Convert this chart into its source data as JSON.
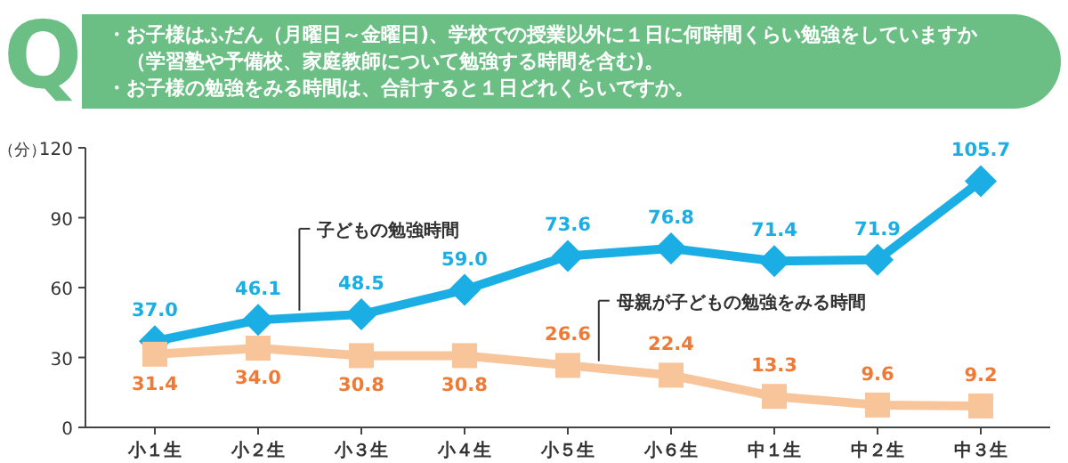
{
  "chart_data": {
    "type": "line",
    "title": "・お子様はふだん（月曜日～金曜日)、学校での授業以外に１日に何時間くらい勉強をしていますか（学習塾や予備校、家庭教師について勉強する時間を含む)。",
    "subtitle": "・お子様の勉強をみる時間は、合計すると１日どれくらいですか。",
    "annotations": [
      "Q"
    ],
    "ylabel": "（分）",
    "categories": [
      "小１生",
      "小２生",
      "小３生",
      "小４生",
      "小５生",
      "小６生",
      "中１生",
      "中２生",
      "中３生"
    ],
    "series": [
      {
        "name": "子どもの勉強時間",
        "color": "#1aaee5",
        "marker": "diamond",
        "values": [
          37.0,
          46.1,
          48.5,
          59.0,
          73.6,
          76.8,
          71.4,
          71.9,
          105.7
        ],
        "value_labels": [
          "37.0",
          "46.1",
          "48.5",
          "59.0",
          "73.6",
          "76.8",
          "71.4",
          "71.9",
          "105.7"
        ]
      },
      {
        "name": "母親が子どもの勉強をみる時間",
        "color": "#f8c49a",
        "marker": "square",
        "values": [
          31.4,
          34.0,
          30.8,
          30.8,
          26.6,
          22.4,
          13.3,
          9.6,
          9.2
        ],
        "value_labels": [
          "31.4",
          "34.0",
          "30.8",
          "30.8",
          "26.6",
          "22.4",
          "13.3",
          "9.6",
          "9.2"
        ]
      }
    ],
    "ylim": [
      0,
      120
    ],
    "yticks": [
      0,
      30,
      60,
      90,
      120
    ],
    "grid": false
  }
}
